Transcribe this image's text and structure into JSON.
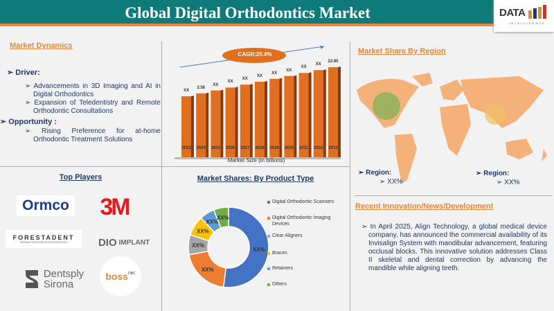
{
  "header": {
    "title": "Global Digital Orthodontics Market",
    "logo_text": "DATA",
    "logo_sub": "INTELLIGENCE"
  },
  "dynamics": {
    "title": "Market Dynamics",
    "driver_label": "➢ Driver:",
    "drivers": [
      "➢ Advancements in 3D Imaging and AI in Digital Orthodontics",
      "➢ Expansion of Teledentistry and Remote Orthodontic Consultations"
    ],
    "opportunity_label": "➢ Opportunity :",
    "opportunities": [
      "➢ Rising Preference for at-home Orthodontic Treatment Solutions"
    ]
  },
  "chart_data": [
    {
      "type": "bar",
      "title": "",
      "xlabel": "Market Size (in billions)",
      "cagr": "CAGR:20.4%",
      "categories": [
        "2023",
        "2024",
        "2025",
        "2026",
        "2027",
        "2028",
        "2029",
        "2030",
        "2031",
        "2032",
        "2033"
      ],
      "data_labels": [
        "XX",
        "3.58",
        "XX",
        "XX",
        "XX",
        "XX",
        "XX",
        "XX",
        "XX",
        "XX",
        "22.95"
      ],
      "values": [
        null,
        3.58,
        null,
        null,
        null,
        null,
        null,
        null,
        null,
        null,
        22.95
      ],
      "color": "#e07020"
    },
    {
      "type": "pie",
      "title": "Market Shares: By Product Type",
      "legend": "right",
      "categories": [
        "Digital Orthodontic Scanners",
        "Digital Orthodontic Imaging Devices",
        "Clear Aligners",
        "Braces",
        "Retainers",
        "Others"
      ],
      "values": [
        52,
        20,
        8,
        8,
        6,
        6
      ],
      "data_labels": [
        "XX%",
        "XX%",
        "XX%",
        "XX%",
        "XX%",
        "XX%"
      ],
      "colors": [
        "#4472c4",
        "#ed7d31",
        "#a5a5a5",
        "#ffc000",
        "#5b9bd5",
        "#70ad47"
      ]
    }
  ],
  "region": {
    "title": "Market Share By Region",
    "items": [
      {
        "label": "➢ Region:",
        "value": "➢ XX%"
      },
      {
        "label": "➢ Region:",
        "value": "➢ XX%"
      }
    ]
  },
  "players": {
    "title": "Top Players",
    "logos": [
      "Ormco",
      "3M",
      "FORESTADENT",
      "GERMAN PRECISION IN ORTHODONTICS",
      "DIO",
      "IMPLANT",
      "Dentsply",
      "Sirona",
      "boss",
      "DBC"
    ]
  },
  "news": {
    "title": "Recent Innovation/News/Development",
    "text": "➢ In April 2025, Align Technology, a global medical device company, has announced the commercial availability of its Invisalign System with mandibular advancement, featuring occlusal blocks. This innovative solution addresses Class II skeletal and dental correction by advancing the mandible while aligning teeth."
  }
}
